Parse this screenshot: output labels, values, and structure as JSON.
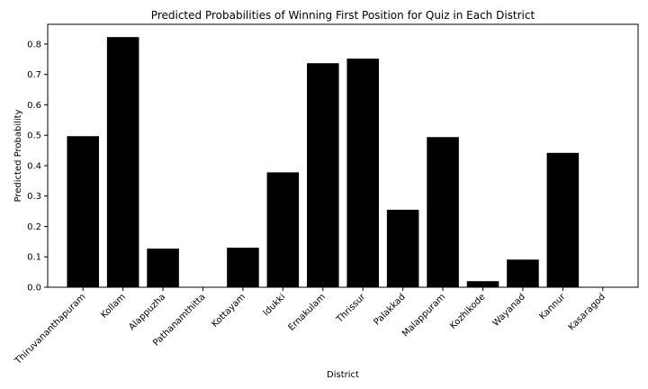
{
  "chart_data": {
    "type": "bar",
    "title": "Predicted Probabilities of Winning First Position for Quiz in Each District",
    "xlabel": "District",
    "ylabel": "Predicted Probability",
    "categories": [
      "Thiruvananthapuram",
      "Kollam",
      "Alappuzha",
      "Pathanamthitta",
      "Kottayam",
      "Idukki",
      "Ernakulam",
      "Thrissur",
      "Palakkad",
      "Malappuram",
      "Kozhikode",
      "Wayanad",
      "Kannur",
      "Kasaragod"
    ],
    "values": [
      0.497,
      0.823,
      0.127,
      0.0,
      0.13,
      0.378,
      0.737,
      0.752,
      0.255,
      0.494,
      0.02,
      0.091,
      0.442,
      0.0
    ],
    "ylim": [
      0,
      0.865
    ],
    "yticks": [
      0.0,
      0.1,
      0.2,
      0.3,
      0.4,
      0.5,
      0.6,
      0.7,
      0.8
    ],
    "ytick_labels": [
      "0.0",
      "0.1",
      "0.2",
      "0.3",
      "0.4",
      "0.5",
      "0.6",
      "0.7",
      "0.8"
    ],
    "bar_color": "#000000",
    "grid": false,
    "legend": "none"
  }
}
